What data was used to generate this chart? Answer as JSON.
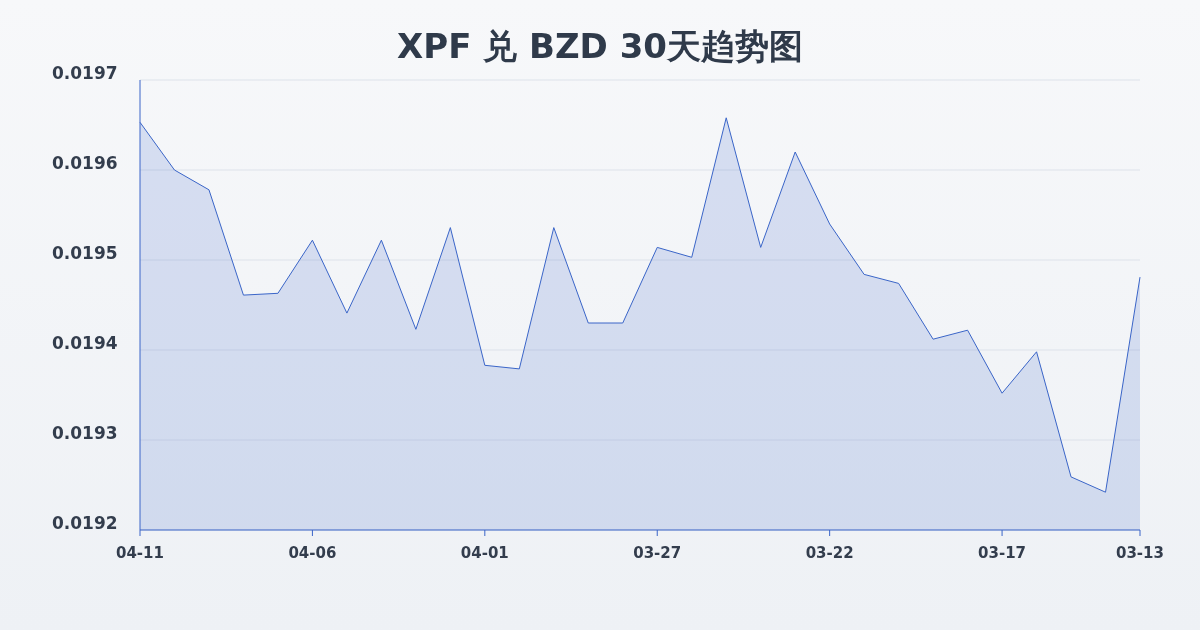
{
  "chart_data": {
    "type": "area",
    "title": "XPF 兑 BZD 30天趋势图",
    "categories": [
      "04-11",
      null,
      null,
      null,
      null,
      "04-06",
      null,
      null,
      null,
      null,
      "04-01",
      null,
      null,
      null,
      null,
      "03-27",
      null,
      null,
      null,
      null,
      "03-22",
      null,
      null,
      null,
      null,
      "03-17",
      null,
      null,
      null,
      "03-13"
    ],
    "series": [
      {
        "color": "#3a65c8",
        "values": [
          0.019653,
          0.0196,
          0.019578,
          0.019461,
          0.019463,
          0.019522,
          0.019441,
          0.019522,
          0.019423,
          0.019536,
          0.019383,
          0.019379,
          0.019536,
          0.01943,
          0.01943,
          0.019514,
          0.019503,
          0.019658,
          0.019514,
          0.01962,
          0.01954,
          0.019484,
          0.019474,
          0.019412,
          0.019422,
          0.019352,
          0.019398,
          0.019259,
          0.019242,
          0.019481
        ]
      }
    ],
    "ylim": [
      0.0192,
      0.0197
    ],
    "yticks": [
      0.0192,
      0.0193,
      0.0194,
      0.0195,
      0.0196,
      0.0197
    ],
    "grid": "y",
    "marker": "none"
  }
}
